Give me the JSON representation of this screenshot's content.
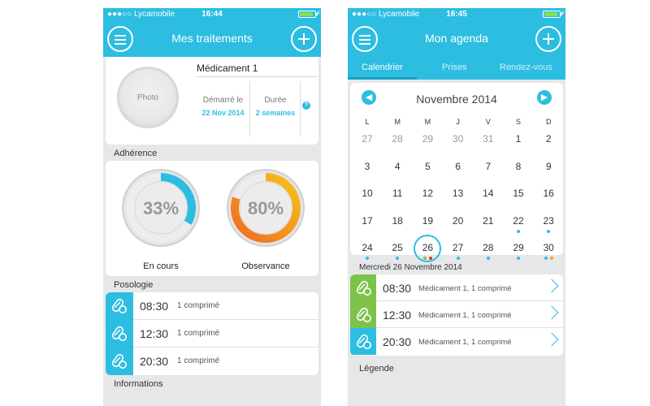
{
  "left": {
    "status": {
      "carrier": "●●●○○ Lycamobile",
      "time": "16:44"
    },
    "nav_title": "Mes traitements",
    "medication": {
      "photo_label": "Photo",
      "name": "Médicament 1",
      "start_label": "Démarré le",
      "start_value": "22 Nov 2014",
      "duration_label": "Durée",
      "duration_value": "2 semaines",
      "help": "?"
    },
    "adherence": {
      "title": "Adhérence",
      "en_cours": {
        "value": "33%",
        "label": "En cours",
        "fraction": 0.33,
        "color": "#2cbde1"
      },
      "observance": {
        "value": "80%",
        "label": "Observance",
        "fraction": 0.8,
        "color": "#f5a623"
      }
    },
    "posologie": {
      "title": "Posologie",
      "rows": [
        {
          "time": "08:30",
          "desc": "1 comprimé"
        },
        {
          "time": "12:30",
          "desc": "1 comprimé"
        },
        {
          "time": "20:30",
          "desc": "1 comprimé"
        }
      ]
    },
    "info_title": "Informations"
  },
  "right": {
    "status": {
      "carrier": "●●●○○ Lycamobile",
      "time": "16:45"
    },
    "nav_title": "Mon agenda",
    "tabs": [
      "Calendrier",
      "Prises",
      "Rendez-vous"
    ],
    "calendar": {
      "month": "Novembre 2014",
      "prev": "◀",
      "next": "▶",
      "dow": [
        "L",
        "M",
        "M",
        "J",
        "V",
        "S",
        "D"
      ],
      "weeks": [
        [
          "27",
          "28",
          "29",
          "30",
          "31",
          "1",
          "2"
        ],
        [
          "3",
          "4",
          "5",
          "6",
          "7",
          "8",
          "9"
        ],
        [
          "10",
          "11",
          "12",
          "13",
          "14",
          "15",
          "16"
        ],
        [
          "17",
          "18",
          "19",
          "20",
          "21",
          "22",
          "23"
        ],
        [
          "24",
          "25",
          "26",
          "27",
          "28",
          "29",
          "30"
        ]
      ],
      "muted_first_row_count": 5,
      "selected": "26"
    },
    "schedule": {
      "date_title": "Mercredi 26 Novembre 2014",
      "rows": [
        {
          "time": "08:30",
          "desc": "Médicament 1, 1 comprimé",
          "status": "green"
        },
        {
          "time": "12:30",
          "desc": "Médicament 1, 1 comprimé",
          "status": "green"
        },
        {
          "time": "20:30",
          "desc": "Médicament 1, 1 comprimé",
          "status": "blue"
        }
      ]
    },
    "legend_title": "Légende"
  }
}
